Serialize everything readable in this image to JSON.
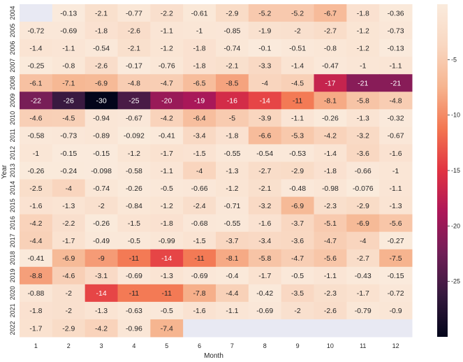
{
  "chart_data": {
    "type": "heatmap",
    "title": "",
    "xlabel": "Month",
    "ylabel": "Year",
    "x_categories": [
      "1",
      "2",
      "3",
      "4",
      "5",
      "6",
      "7",
      "8",
      "9",
      "10",
      "11",
      "12"
    ],
    "y_categories": [
      "2004",
      "2005",
      "2006",
      "2007",
      "2008",
      "2009",
      "2010",
      "2011",
      "2012",
      "2013",
      "2014",
      "2015",
      "2016",
      "2017",
      "2018",
      "2019",
      "2020",
      "2021",
      "2022"
    ],
    "values": [
      [
        null,
        -0.13,
        -2.1,
        -0.77,
        -2.2,
        -0.61,
        -2.9,
        -5.2,
        -5.2,
        -6.7,
        -1.8,
        -0.36
      ],
      [
        -0.72,
        -0.69,
        -1.8,
        -2.6,
        -1.1,
        -1,
        -0.85,
        -1.9,
        -2,
        -2.7,
        -1.2,
        -0.73
      ],
      [
        -1.4,
        -1.1,
        -0.54,
        -2.1,
        -1.2,
        -1.8,
        -0.74,
        -0.1,
        -0.51,
        -0.8,
        -1.2,
        -0.13
      ],
      [
        -0.25,
        -0.8,
        -2.6,
        -0.17,
        -0.76,
        -1.8,
        -2.1,
        -3.3,
        -1.4,
        -0.47,
        -1,
        -1.1
      ],
      [
        -6.1,
        -7.1,
        -6.9,
        -4.8,
        -4.7,
        -6.5,
        -8.5,
        -4,
        -4.5,
        -17,
        -21,
        -21
      ],
      [
        -22,
        -26,
        -30,
        -25,
        -20,
        -19,
        -16,
        -14,
        -11,
        -8.1,
        -5.8,
        -4.8
      ],
      [
        -4.6,
        -4.5,
        -0.94,
        -0.67,
        -4.2,
        -6.4,
        -5,
        -3.9,
        -1.1,
        -0.26,
        -1.3,
        -0.32
      ],
      [
        -0.58,
        -0.73,
        -0.89,
        -0.092,
        -0.41,
        -3.4,
        -1.8,
        -6.6,
        -5.3,
        -4.2,
        -3.2,
        -0.67
      ],
      [
        -1,
        -0.15,
        -0.15,
        -1.2,
        -1.7,
        -1.5,
        -0.55,
        -0.54,
        -0.53,
        -1.4,
        -3.6,
        -1.6
      ],
      [
        -0.26,
        -0.24,
        -0.098,
        -0.58,
        -1.1,
        -4,
        -1.3,
        -2.7,
        -2.9,
        -1.8,
        -0.66,
        -1
      ],
      [
        -2.5,
        -4,
        -0.74,
        -0.26,
        -0.5,
        -0.66,
        -1.2,
        -2.1,
        -0.48,
        -0.98,
        -0.076,
        -1.1
      ],
      [
        -1.6,
        -1.3,
        -2,
        -0.84,
        -1.2,
        -2.4,
        -0.71,
        -3.2,
        -6.9,
        -2.3,
        -2.9,
        -1.3
      ],
      [
        -4.2,
        -2.2,
        -0.26,
        -1.5,
        -1.8,
        -0.68,
        -0.55,
        -1.6,
        -3.7,
        -5.1,
        -6.9,
        -5.6
      ],
      [
        -4.4,
        -1.7,
        -0.49,
        -0.5,
        -0.99,
        -1.5,
        -3.7,
        -3.4,
        -3.6,
        -4.7,
        -4,
        -0.27
      ],
      [
        -0.41,
        -6.9,
        -9,
        -11,
        -14,
        -11,
        -8.1,
        -5.8,
        -4.7,
        -5.6,
        -2.7,
        -7.5
      ],
      [
        -8.8,
        -4.6,
        -3.1,
        -0.69,
        -1.3,
        -0.69,
        -0.4,
        -1.7,
        -0.5,
        -1.1,
        -0.43,
        -0.15
      ],
      [
        -0.88,
        -2,
        -14,
        -11,
        -11,
        -7.8,
        -4.4,
        -0.42,
        -3.5,
        -2.3,
        -1.7,
        -0.72
      ],
      [
        -1.8,
        -2,
        -1.3,
        -0.63,
        -0.5,
        -1.6,
        -1.1,
        -0.69,
        -2,
        -2.6,
        -0.79,
        -0.9
      ],
      [
        -1.7,
        -2.9,
        -4.2,
        -0.96,
        -7.4,
        null,
        null,
        null,
        null,
        null,
        null,
        null
      ]
    ],
    "value_labels": [
      [
        "",
        "-0.13",
        "-2.1",
        "-0.77",
        "-2.2",
        "-0.61",
        "-2.9",
        "-5.2",
        "-5.2",
        "-6.7",
        "-1.8",
        "-0.36"
      ],
      [
        "-0.72",
        "-0.69",
        "-1.8",
        "-2.6",
        "-1.1",
        "-1",
        "-0.85",
        "-1.9",
        "-2",
        "-2.7",
        "-1.2",
        "-0.73"
      ],
      [
        "-1.4",
        "-1.1",
        "-0.54",
        "-2.1",
        "-1.2",
        "-1.8",
        "-0.74",
        "-0.1",
        "-0.51",
        "-0.8",
        "-1.2",
        "-0.13"
      ],
      [
        "-0.25",
        "-0.8",
        "-2.6",
        "-0.17",
        "-0.76",
        "-1.8",
        "-2.1",
        "-3.3",
        "-1.4",
        "-0.47",
        "-1",
        "-1.1"
      ],
      [
        "-6.1",
        "-7.1",
        "-6.9",
        "-4.8",
        "-4.7",
        "-6.5",
        "-8.5",
        "-4",
        "-4.5",
        "-17",
        "-21",
        "-21"
      ],
      [
        "-22",
        "-26",
        "-30",
        "-25",
        "-20",
        "-19",
        "-16",
        "-14",
        "-11",
        "-8.1",
        "-5.8",
        "-4.8"
      ],
      [
        "-4.6",
        "-4.5",
        "-0.94",
        "-0.67",
        "-4.2",
        "-6.4",
        "-5",
        "-3.9",
        "-1.1",
        "-0.26",
        "-1.3",
        "-0.32"
      ],
      [
        "-0.58",
        "-0.73",
        "-0.89",
        "-0.092",
        "-0.41",
        "-3.4",
        "-1.8",
        "-6.6",
        "-5.3",
        "-4.2",
        "-3.2",
        "-0.67"
      ],
      [
        "-1",
        "-0.15",
        "-0.15",
        "-1.2",
        "-1.7",
        "-1.5",
        "-0.55",
        "-0.54",
        "-0.53",
        "-1.4",
        "-3.6",
        "-1.6"
      ],
      [
        "-0.26",
        "-0.24",
        "-0.098",
        "-0.58",
        "-1.1",
        "-4",
        "-1.3",
        "-2.7",
        "-2.9",
        "-1.8",
        "-0.66",
        "-1"
      ],
      [
        "-2.5",
        "-4",
        "-0.74",
        "-0.26",
        "-0.5",
        "-0.66",
        "-1.2",
        "-2.1",
        "-0.48",
        "-0.98",
        "-0.076",
        "-1.1"
      ],
      [
        "-1.6",
        "-1.3",
        "-2",
        "-0.84",
        "-1.2",
        "-2.4",
        "-0.71",
        "-3.2",
        "-6.9",
        "-2.3",
        "-2.9",
        "-1.3"
      ],
      [
        "-4.2",
        "-2.2",
        "-0.26",
        "-1.5",
        "-1.8",
        "-0.68",
        "-0.55",
        "-1.6",
        "-3.7",
        "-5.1",
        "-6.9",
        "-5.6"
      ],
      [
        "-4.4",
        "-1.7",
        "-0.49",
        "-0.5",
        "-0.99",
        "-1.5",
        "-3.7",
        "-3.4",
        "-3.6",
        "-4.7",
        "-4",
        "-0.27"
      ],
      [
        "-0.41",
        "-6.9",
        "-9",
        "-11",
        "-14",
        "-11",
        "-8.1",
        "-5.8",
        "-4.7",
        "-5.6",
        "-2.7",
        "-7.5"
      ],
      [
        "-8.8",
        "-4.6",
        "-3.1",
        "-0.69",
        "-1.3",
        "-0.69",
        "-0.4",
        "-1.7",
        "-0.5",
        "-1.1",
        "-0.43",
        "-0.15"
      ],
      [
        "-0.88",
        "-2",
        "-14",
        "-11",
        "-11",
        "-7.8",
        "-4.4",
        "-0.42",
        "-3.5",
        "-2.3",
        "-1.7",
        "-0.72"
      ],
      [
        "-1.8",
        "-2",
        "-1.3",
        "-0.63",
        "-0.5",
        "-1.6",
        "-1.1",
        "-0.69",
        "-2",
        "-2.6",
        "-0.79",
        "-0.9"
      ],
      [
        "-1.7",
        "-2.9",
        "-4.2",
        "-0.96",
        "-7.4",
        "",
        "",
        "",
        "",
        "",
        "",
        ""
      ]
    ],
    "colorbar": {
      "min": -30,
      "max": 0,
      "ticks": [
        -5,
        -10,
        -15,
        -20,
        -25
      ],
      "tick_labels": [
        "-5",
        "-10",
        "-15",
        "-20",
        "-25"
      ],
      "colormap": "rocket"
    },
    "missing_color": "#e8e9f3",
    "grid": false
  }
}
